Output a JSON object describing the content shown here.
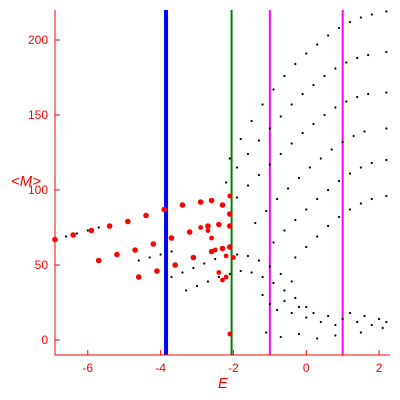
{
  "chart_data": {
    "type": "scatter",
    "title": "",
    "xlabel": "E",
    "ylabel": "<M>",
    "xlim": [
      -6.9,
      2.3
    ],
    "ylim": [
      -10,
      220
    ],
    "x_ticks": [
      -6,
      -4,
      -2,
      0,
      2
    ],
    "y_ticks": [
      0,
      50,
      100,
      150,
      200
    ],
    "grid": false,
    "colors": {
      "axis": "#ff0000",
      "text": "#ff0000",
      "black_points": "#000000",
      "red_points": "#ff0000",
      "blue_line": "#0000ff",
      "green_line": "#008000",
      "magenta_lines": "#ff00ff"
    },
    "vertical_lines": [
      {
        "x": -3.85,
        "color": "#0000ff",
        "style": "thick"
      },
      {
        "x": -2.05,
        "color": "#008000",
        "style": "thin"
      },
      {
        "x": -1.0,
        "color": "#ff00ff",
        "style": "thin"
      },
      {
        "x": 1.0,
        "color": "#ff00ff",
        "style": "thin"
      }
    ],
    "series": [
      {
        "color": "black",
        "kind": "dotted-curve",
        "points": [
          [
            -2.1,
            121
          ],
          [
            -1.8,
            134
          ],
          [
            -1.5,
            146
          ],
          [
            -1.2,
            157
          ],
          [
            -0.9,
            167
          ],
          [
            -0.6,
            176
          ],
          [
            -0.3,
            184
          ],
          [
            0.0,
            191
          ],
          [
            0.3,
            197
          ],
          [
            0.6,
            203
          ],
          [
            0.9,
            208
          ],
          [
            1.2,
            212
          ],
          [
            1.5,
            215
          ],
          [
            1.8,
            217
          ],
          [
            2.2,
            219
          ]
        ]
      },
      {
        "color": "black",
        "kind": "dotted-curve",
        "points": [
          [
            -2.2,
            105
          ],
          [
            -1.9,
            115
          ],
          [
            -1.6,
            124
          ],
          [
            -1.3,
            133
          ],
          [
            -1.0,
            141
          ],
          [
            -0.7,
            149
          ],
          [
            -0.4,
            157
          ],
          [
            -0.1,
            164
          ],
          [
            0.2,
            170
          ],
          [
            0.5,
            176
          ],
          [
            0.8,
            181
          ],
          [
            1.1,
            185
          ],
          [
            1.4,
            188
          ],
          [
            1.7,
            190
          ],
          [
            2.2,
            192
          ]
        ]
      },
      {
        "color": "black",
        "kind": "dotted-curve",
        "points": [
          [
            -1.9,
            95
          ],
          [
            -1.6,
            103
          ],
          [
            -1.3,
            110
          ],
          [
            -1.0,
            117
          ],
          [
            -0.7,
            124
          ],
          [
            -0.4,
            131
          ],
          [
            -0.1,
            138
          ],
          [
            0.2,
            144
          ],
          [
            0.5,
            150
          ],
          [
            0.8,
            155
          ],
          [
            1.1,
            159
          ],
          [
            1.4,
            162
          ],
          [
            1.7,
            164
          ],
          [
            2.2,
            165
          ]
        ]
      },
      {
        "color": "black",
        "kind": "dotted-curve",
        "points": [
          [
            -1.4,
            78
          ],
          [
            -1.1,
            86
          ],
          [
            -0.8,
            94
          ],
          [
            -0.5,
            101
          ],
          [
            -0.2,
            108
          ],
          [
            0.1,
            115
          ],
          [
            0.4,
            121
          ],
          [
            0.7,
            127
          ],
          [
            1.0,
            132
          ],
          [
            1.3,
            136
          ],
          [
            1.6,
            139
          ],
          [
            2.2,
            141
          ]
        ]
      },
      {
        "color": "black",
        "kind": "dotted-curve",
        "points": [
          [
            -0.9,
            65
          ],
          [
            -0.6,
            73
          ],
          [
            -0.3,
            80
          ],
          [
            0.0,
            87
          ],
          [
            0.3,
            94
          ],
          [
            0.6,
            100
          ],
          [
            0.9,
            106
          ],
          [
            1.2,
            111
          ],
          [
            1.5,
            115
          ],
          [
            1.8,
            118
          ],
          [
            2.2,
            120
          ]
        ]
      },
      {
        "color": "black",
        "kind": "dotted-curve",
        "points": [
          [
            -0.3,
            55
          ],
          [
            0.0,
            62
          ],
          [
            0.3,
            69
          ],
          [
            0.6,
            76
          ],
          [
            0.9,
            82
          ],
          [
            1.2,
            87
          ],
          [
            1.5,
            91
          ],
          [
            1.8,
            94
          ],
          [
            2.2,
            96
          ]
        ]
      },
      {
        "color": "black",
        "kind": "dotted-curve",
        "points": [
          [
            -3.7,
            42
          ],
          [
            -3.4,
            45
          ],
          [
            -3.1,
            48
          ],
          [
            -2.8,
            51
          ],
          [
            -2.5,
            54
          ],
          [
            -2.2,
            56
          ],
          [
            -1.9,
            57
          ],
          [
            -1.6,
            56
          ],
          [
            -1.3,
            53
          ],
          [
            -1.0,
            49
          ],
          [
            -0.7,
            44
          ],
          [
            -0.4,
            39
          ]
        ]
      },
      {
        "color": "black",
        "kind": "dotted-curve",
        "points": [
          [
            -3.3,
            33
          ],
          [
            -3.0,
            36
          ],
          [
            -2.7,
            39
          ],
          [
            -2.4,
            42
          ],
          [
            -2.1,
            44
          ],
          [
            -1.8,
            46
          ],
          [
            -1.5,
            45
          ],
          [
            -1.2,
            42
          ],
          [
            -0.9,
            38
          ],
          [
            -0.6,
            33
          ],
          [
            -0.3,
            28
          ],
          [
            0.0,
            22
          ]
        ]
      },
      {
        "color": "black",
        "kind": "dotted-curve",
        "points": [
          [
            -4.6,
            53
          ],
          [
            -4.3,
            55
          ],
          [
            -4.0,
            57
          ],
          [
            -3.7,
            59
          ]
        ]
      },
      {
        "color": "black",
        "kind": "dotted-curve",
        "points": [
          [
            -6.9,
            67
          ],
          [
            -6.6,
            69
          ],
          [
            -6.3,
            71
          ],
          [
            -6.0,
            73
          ],
          [
            -5.7,
            75
          ]
        ]
      },
      {
        "color": "black",
        "kind": "scattered-cloud",
        "points": [
          [
            -1.2,
            30
          ],
          [
            -1.0,
            24
          ],
          [
            -0.8,
            20
          ],
          [
            -0.6,
            26
          ],
          [
            -0.4,
            18
          ],
          [
            -0.2,
            22
          ],
          [
            0.0,
            15
          ],
          [
            0.2,
            18
          ],
          [
            0.4,
            12
          ],
          [
            0.6,
            16
          ],
          [
            0.8,
            10
          ],
          [
            1.0,
            14
          ],
          [
            1.2,
            18
          ],
          [
            1.4,
            12
          ],
          [
            1.6,
            16
          ],
          [
            1.8,
            10
          ],
          [
            2.0,
            14
          ],
          [
            2.2,
            12
          ],
          [
            -1.1,
            5
          ],
          [
            -0.7,
            2
          ],
          [
            -0.2,
            4
          ],
          [
            0.3,
            1
          ],
          [
            0.8,
            3
          ],
          [
            1.5,
            5
          ],
          [
            2.1,
            8
          ]
        ]
      },
      {
        "color": "red",
        "kind": "thick-curve",
        "points": [
          [
            -6.9,
            67
          ],
          [
            -6.4,
            70
          ],
          [
            -5.9,
            73
          ],
          [
            -5.4,
            76
          ],
          [
            -4.9,
            79
          ],
          [
            -4.4,
            83
          ],
          [
            -3.9,
            87
          ],
          [
            -3.4,
            90
          ],
          [
            -2.9,
            92
          ],
          [
            -2.6,
            93
          ],
          [
            -2.3,
            90
          ],
          [
            -2.1,
            84
          ]
        ]
      },
      {
        "color": "red",
        "kind": "thick-curve",
        "points": [
          [
            -5.7,
            53
          ],
          [
            -5.2,
            57
          ],
          [
            -4.7,
            60
          ],
          [
            -4.2,
            64
          ],
          [
            -3.7,
            68
          ],
          [
            -3.2,
            72
          ],
          [
            -2.7,
            76
          ],
          [
            -2.4,
            77
          ],
          [
            -2.1,
            76
          ]
        ]
      },
      {
        "color": "red",
        "kind": "thick-curve",
        "points": [
          [
            -4.6,
            42
          ],
          [
            -4.1,
            46
          ],
          [
            -3.6,
            50
          ],
          [
            -3.1,
            55
          ],
          [
            -2.6,
            59
          ],
          [
            -2.3,
            61
          ],
          [
            -2.1,
            62
          ]
        ]
      },
      {
        "color": "red",
        "kind": "sparse-points",
        "points": [
          [
            -2.9,
            75
          ],
          [
            -2.7,
            73
          ],
          [
            -2.6,
            68
          ],
          [
            -2.5,
            60
          ],
          [
            -2.4,
            45
          ],
          [
            -2.3,
            40
          ],
          [
            -2.2,
            42
          ],
          [
            -2.1,
            4
          ],
          [
            -2.2,
            56
          ],
          [
            -2.1,
            96
          ],
          [
            -2.0,
            55
          ]
        ]
      }
    ]
  }
}
